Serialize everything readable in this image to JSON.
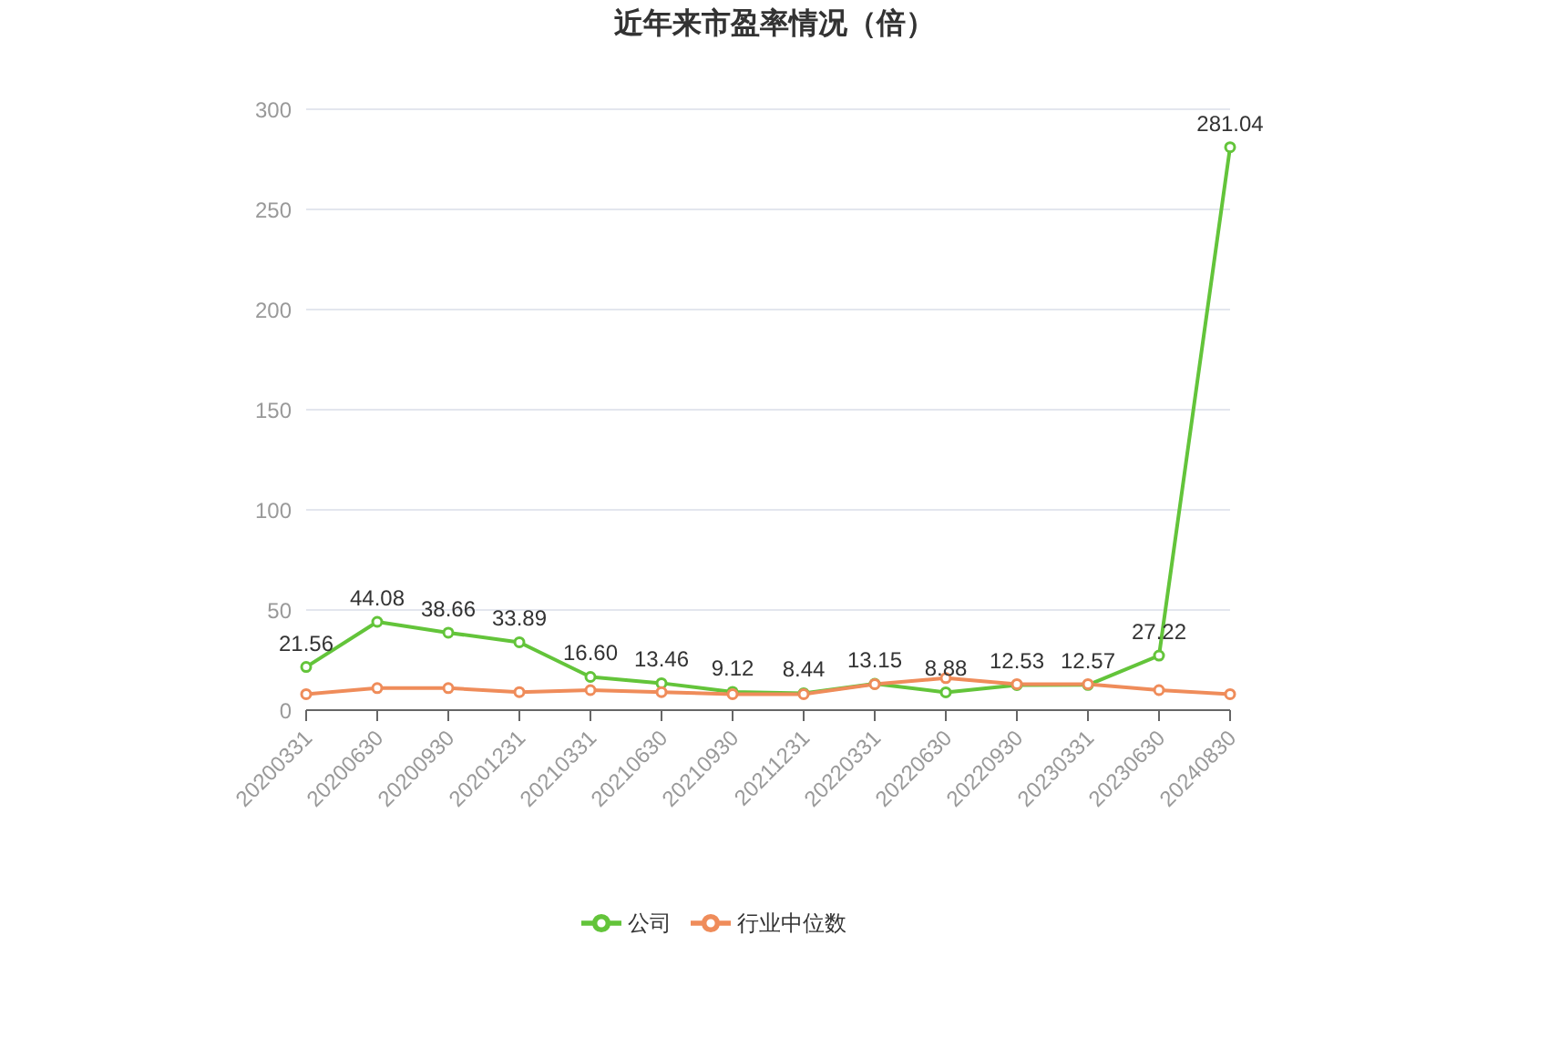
{
  "chart_data": {
    "type": "line",
    "title": "近年来市盈率情况（倍）",
    "categories": [
      "20200331",
      "20200630",
      "20200930",
      "20201231",
      "20210331",
      "20210630",
      "20210930",
      "20211231",
      "20220331",
      "20220630",
      "20220930",
      "20230331",
      "20230630",
      "20240830"
    ],
    "series": [
      {
        "name": "公司",
        "color": "#63c43a",
        "values": [
          21.56,
          44.08,
          38.66,
          33.89,
          16.6,
          13.46,
          9.12,
          8.44,
          13.15,
          8.88,
          12.53,
          12.57,
          27.22,
          281.04
        ],
        "value_labels": [
          "21.56",
          "44.08",
          "38.66",
          "33.89",
          "16.60",
          "13.46",
          "9.12",
          "8.44",
          "13.15",
          "8.88",
          "12.53",
          "12.57",
          "27.22",
          "281.04"
        ]
      },
      {
        "name": "行业中位数",
        "color": "#ef8c5a",
        "values": [
          8,
          11,
          11,
          9,
          10,
          9,
          8,
          8,
          13,
          16,
          13,
          13,
          10,
          8
        ]
      }
    ],
    "ylim": [
      0,
      300
    ],
    "yticks": [
      0,
      50,
      100,
      150,
      200,
      250,
      300
    ],
    "grid": "y",
    "legend": "bottom",
    "marker": "circle",
    "line_style": "solid"
  }
}
